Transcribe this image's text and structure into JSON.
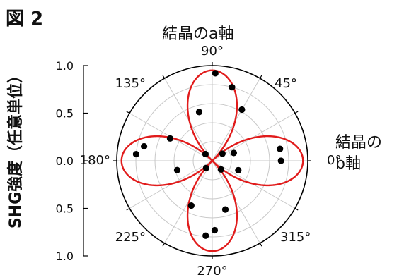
{
  "figure_label": "図 2",
  "annotations": {
    "a_axis": "結晶のa軸",
    "b_axis_line1": "結晶の",
    "b_axis_line2": "b軸"
  },
  "chart_data": {
    "type": "scatter",
    "coordinate_system": "polar",
    "ylabel": "SHG強度（任意単位）",
    "radial_ticks": [
      "1.0",
      "0.5",
      "0.0",
      "0.5",
      "1.0"
    ],
    "radial_range": [
      0,
      1.0
    ],
    "angle_ticks": [
      "0°",
      "45°",
      "90°",
      "135°",
      "180°",
      "225°",
      "270°",
      "315°"
    ],
    "angle_tick_values_deg": [
      0,
      45,
      90,
      135,
      180,
      225,
      270,
      315
    ],
    "grid": true,
    "colors": {
      "fit_line": "#e11b1b",
      "points": "#000000",
      "grid": "#c8c8c8",
      "frame": "#000000"
    },
    "series": [
      {
        "kind": "points",
        "points": [
          {
            "angle": 0,
            "r": 0.72
          },
          {
            "angle": 10,
            "r": 0.72
          },
          {
            "angle": 20,
            "r": 0.24
          },
          {
            "angle": 35,
            "r": 0.13
          },
          {
            "angle": 60,
            "r": 0.62
          },
          {
            "angle": 75,
            "r": 0.8
          },
          {
            "angle": 88,
            "r": 0.92
          },
          {
            "angle": 105,
            "r": 0.53
          },
          {
            "angle": 135,
            "r": 0.1
          },
          {
            "angle": 152,
            "r": 0.5
          },
          {
            "angle": 168,
            "r": 0.73
          },
          {
            "angle": 175,
            "r": 0.8
          },
          {
            "angle": 195,
            "r": 0.38
          },
          {
            "angle": 230,
            "r": 0.1
          },
          {
            "angle": 245,
            "r": 0.52
          },
          {
            "angle": 265,
            "r": 0.79
          },
          {
            "angle": 272,
            "r": 0.73
          },
          {
            "angle": 285,
            "r": 0.53
          },
          {
            "angle": 315,
            "r": 0.13
          },
          {
            "angle": 340,
            "r": 0.29
          }
        ]
      },
      {
        "kind": "fit",
        "model": "|cos 2θ|",
        "amplitude": 0.95
      }
    ]
  }
}
